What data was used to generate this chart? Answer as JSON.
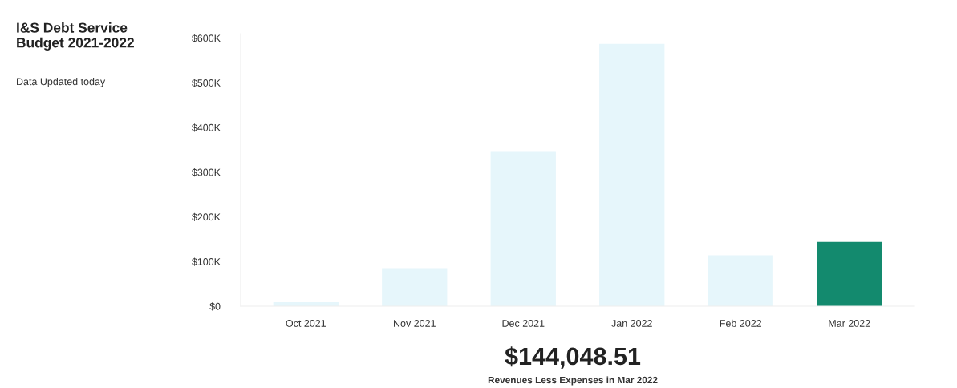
{
  "chart_data": {
    "type": "bar",
    "title": "I&S Debt Service\nBudget 2021-2022",
    "subtitle": "Data Updated today",
    "categories": [
      "Oct 2021",
      "Nov 2021",
      "Dec 2021",
      "Jan 2022",
      "Feb 2022",
      "Mar 2022"
    ],
    "values": [
      9000,
      85000,
      347000,
      587000,
      114000,
      144000
    ],
    "colors": [
      "#e6f6fb",
      "#e6f6fb",
      "#e6f6fb",
      "#e6f6fb",
      "#e6f6fb",
      "#138a6e"
    ],
    "ylim": [
      0,
      610000
    ],
    "yticks": [
      {
        "value": 0,
        "label": "$0"
      },
      {
        "value": 100000,
        "label": "$100K"
      },
      {
        "value": 200000,
        "label": "$200K"
      },
      {
        "value": 300000,
        "label": "$300K"
      },
      {
        "value": 400000,
        "label": "$400K"
      },
      {
        "value": 500000,
        "label": "$500K"
      },
      {
        "value": 600000,
        "label": "$600K"
      }
    ],
    "grid": false,
    "annotations": [
      "$144,048.51",
      "Revenues Less Expenses in Mar 2022"
    ]
  }
}
